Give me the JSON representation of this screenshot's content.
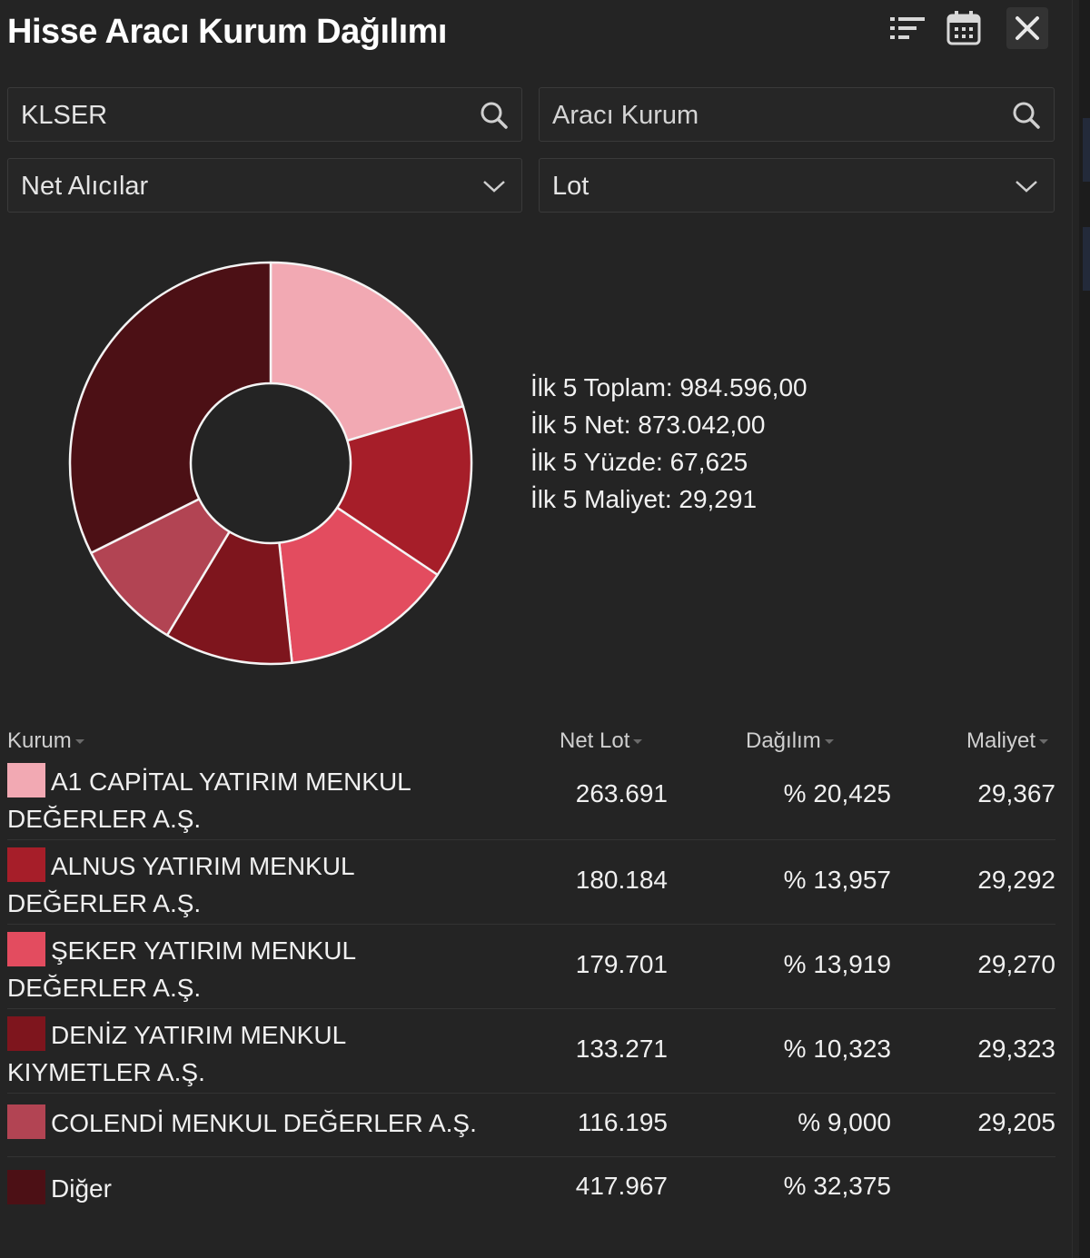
{
  "header": {
    "title": "Hisse Aracı Kurum Dağılımı",
    "icons": [
      "sort-list-icon",
      "calendar-icon",
      "close-icon"
    ]
  },
  "filters": {
    "symbol_value": "KLSER",
    "broker_placeholder": "Aracı Kurum",
    "side_select": "Net Alıcılar",
    "unit_select": "Lot"
  },
  "summary": {
    "total": "İlk 5 Toplam: 984.596,00",
    "net": "İlk 5 Net: 873.042,00",
    "percent": "İlk 5 Yüzde: 67,625",
    "cost": "İlk 5 Maliyet: 29,291"
  },
  "chart_data": {
    "type": "pie",
    "donut": true,
    "categories": [
      "A1 CAPİTAL YATIRIM MENKUL DEĞERLER A.Ş.",
      "ALNUS YATIRIM MENKUL DEĞERLER A.Ş.",
      "ŞEKER YATIRIM MENKUL DEĞERLER A.Ş.",
      "DENİZ YATIRIM MENKUL KIYMETLER A.Ş.",
      "COLENDİ MENKUL DEĞERLER A.Ş.",
      "Diğer"
    ],
    "values": [
      263691,
      180184,
      179701,
      133271,
      116195,
      417967
    ],
    "colors": [
      "#f2a9b3",
      "#a61e29",
      "#e34c5f",
      "#7e151d",
      "#b24453",
      "#4c1015"
    ],
    "stroke": "#f4f4f4"
  },
  "table": {
    "columns": {
      "kurum": "Kurum",
      "net_lot": "Net Lot",
      "dagilim": "Dağılım",
      "maliyet": "Maliyet"
    },
    "rows": [
      {
        "line1": "A1 CAPİTAL YATIRIM MENKUL",
        "line2": "DEĞERLER A.Ş.",
        "net_lot": "263.691",
        "dagilim": "% 20,425",
        "maliyet": "29,367",
        "color": "#f2a9b3"
      },
      {
        "line1": "ALNUS YATIRIM MENKUL",
        "line2": "DEĞERLER A.Ş.",
        "net_lot": "180.184",
        "dagilim": "% 13,957",
        "maliyet": "29,292",
        "color": "#a61e29"
      },
      {
        "line1": "ŞEKER YATIRIM MENKUL",
        "line2": "DEĞERLER A.Ş.",
        "net_lot": "179.701",
        "dagilim": "% 13,919",
        "maliyet": "29,270",
        "color": "#e34c5f"
      },
      {
        "line1": "DENİZ YATIRIM MENKUL",
        "line2": "KIYMETLER A.Ş.",
        "net_lot": "133.271",
        "dagilim": "% 10,323",
        "maliyet": "29,323",
        "color": "#7e151d"
      },
      {
        "line1": "COLENDİ MENKUL DEĞERLER A.Ş.",
        "line2": "",
        "net_lot": "116.195",
        "dagilim": "% 9,000",
        "maliyet": "29,205",
        "color": "#b24453"
      },
      {
        "line1": "Diğer",
        "line2": "",
        "net_lot": "417.967",
        "dagilim": "% 32,375",
        "maliyet": "",
        "color": "#4c1015"
      }
    ]
  }
}
